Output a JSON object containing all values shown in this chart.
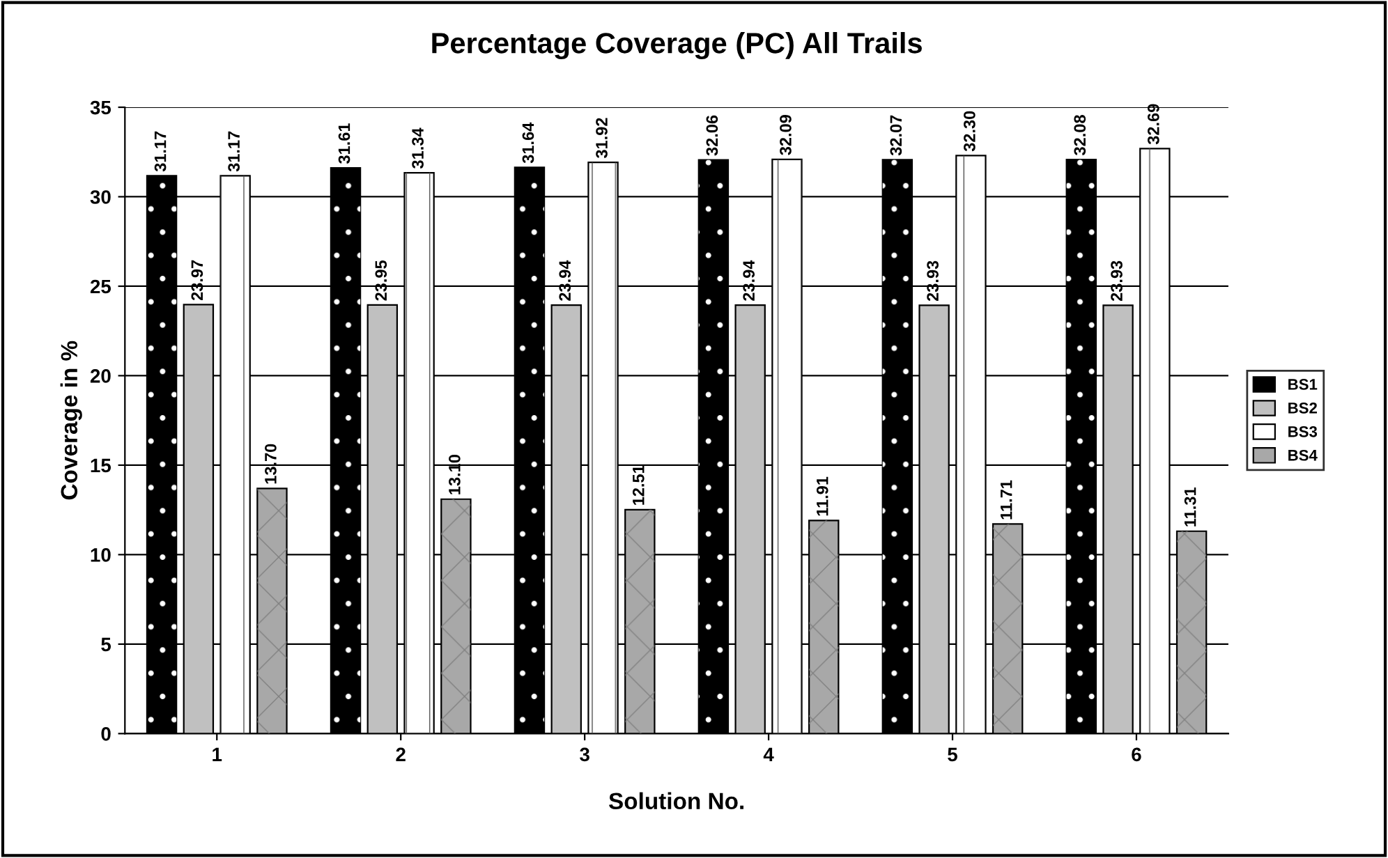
{
  "chart_data": {
    "type": "bar",
    "title": "Percentage Coverage (PC) All Trails",
    "xlabel": "Solution No.",
    "ylabel": "Coverage in %",
    "categories": [
      "1",
      "2",
      "3",
      "4",
      "5",
      "6"
    ],
    "series": [
      {
        "name": "BS1",
        "color": "#000000",
        "values": [
          31.17,
          31.61,
          31.64,
          32.06,
          32.07,
          32.08
        ],
        "value_labels": [
          "31.17",
          "31.61",
          "31.64",
          "32.06",
          "32.07",
          "32.08"
        ]
      },
      {
        "name": "BS2",
        "color": "#c0c0c0",
        "values": [
          23.97,
          23.95,
          23.94,
          23.94,
          23.93,
          23.93
        ],
        "value_labels": [
          "23.97",
          "23.95",
          "23.94",
          "23.94",
          "23.93",
          "23.93"
        ]
      },
      {
        "name": "BS3",
        "color": "#ffffff",
        "values": [
          31.17,
          31.34,
          31.92,
          32.09,
          32.3,
          32.69
        ],
        "value_labels": [
          "31.17",
          "31.34",
          "31.92",
          "32.09",
          "32.30",
          "32.69"
        ]
      },
      {
        "name": "BS4",
        "color": "#a8a8a8",
        "values": [
          13.7,
          13.1,
          12.51,
          11.91,
          11.71,
          11.31
        ],
        "value_labels": [
          "13.70",
          "13.10",
          "12.51",
          "11.91",
          "11.71",
          "11.31"
        ]
      }
    ],
    "ylim": [
      0,
      35
    ],
    "yticks": [
      0,
      5,
      10,
      15,
      20,
      25,
      30,
      35
    ],
    "grid": "y",
    "legend": "right"
  }
}
